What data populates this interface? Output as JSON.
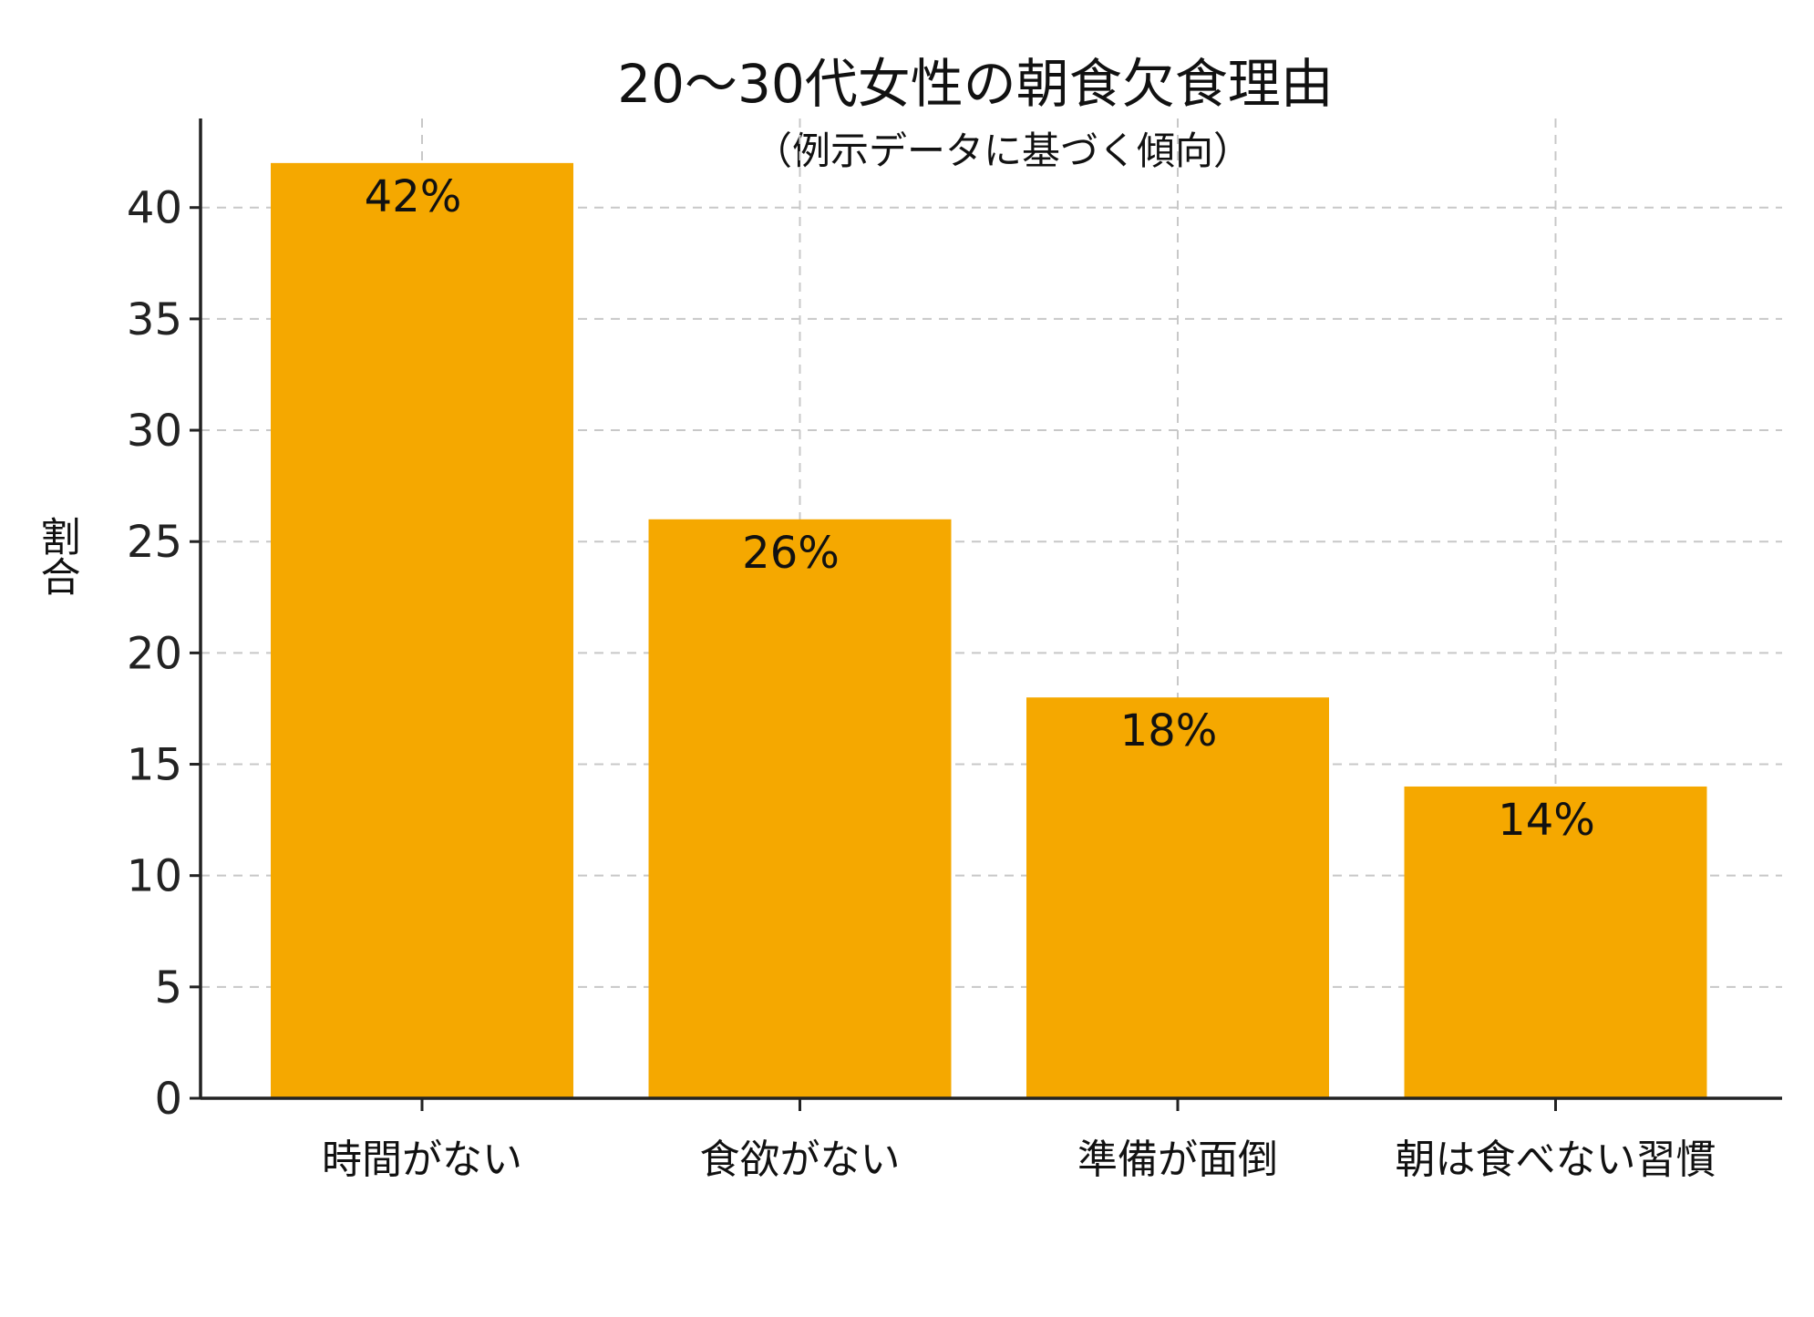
{
  "chart_data": {
    "type": "bar",
    "title": "20～30代女性の朝食欠食理由",
    "subtitle": "（例示データに基づく傾向）",
    "xlabel": "",
    "ylabel": "割合",
    "categories": [
      "時間がない",
      "食欲がない",
      "準備が面倒",
      "朝は食べない習慣"
    ],
    "values": [
      42,
      26,
      18,
      14
    ],
    "value_labels": [
      "42%",
      "26%",
      "18%",
      "14%"
    ],
    "ylim": [
      0,
      44
    ],
    "yticks": [
      0,
      5,
      10,
      15,
      20,
      25,
      30,
      35,
      40
    ],
    "grid": true,
    "bar_color": "#F5A800"
  }
}
